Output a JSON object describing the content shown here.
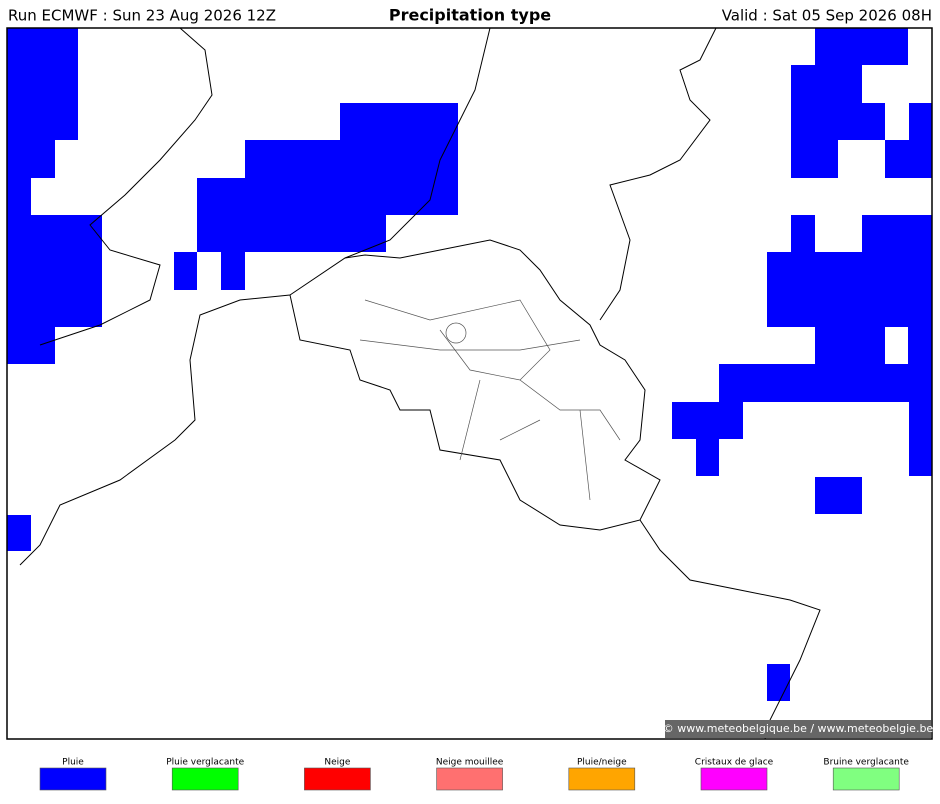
{
  "header": {
    "run": "Run ECMWF : Sun 23 Aug 2026 12Z",
    "title": "Precipitation type",
    "valid": "Valid : Sat 05 Sep 2026 08H"
  },
  "credit": "© www.meteobelgique.be / www.meteobelgie.be",
  "legend": [
    {
      "label": "Pluie",
      "color": "#0000ff"
    },
    {
      "label": "Pluie verglacante",
      "color": "#00ff00"
    },
    {
      "label": "Neige",
      "color": "#ff0000"
    },
    {
      "label": "Neige mouillee",
      "color": "#ff7070"
    },
    {
      "label": "Pluie/neige",
      "color": "#ffa500"
    },
    {
      "label": "Cristaux de glace",
      "color": "#ff00ff"
    },
    {
      "label": "Bruine verglacante",
      "color": "#80ff80"
    }
  ]
}
